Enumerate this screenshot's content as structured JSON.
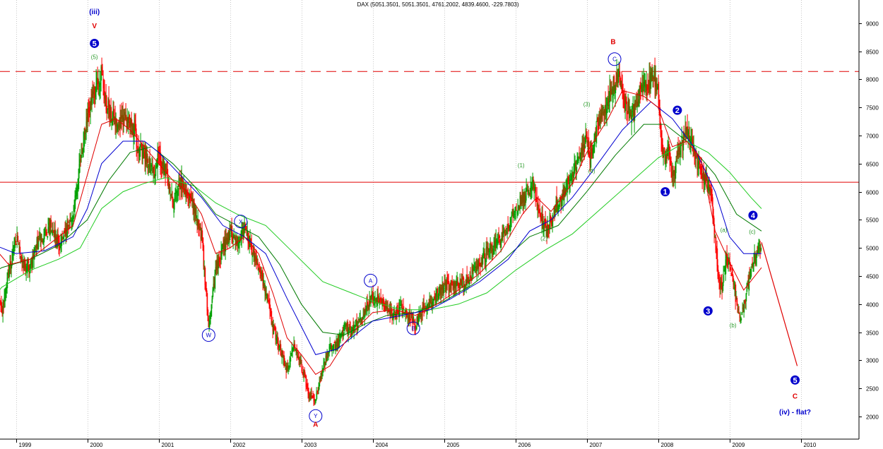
{
  "header": "DAX (5051.3501, 5051.3501, 4761.2002, 4839.4600, -229.7803)",
  "colors": {
    "background": "#ffffff",
    "grid": "#c8c8c8",
    "candle_up": "#00a000",
    "candle_down": "#ff0000",
    "ma_fast": "#e00000",
    "ma_mid": "#0000d0",
    "ma_slow": "#007a00",
    "ma_long": "#22cc22",
    "resistance_line": "#e00000",
    "forecast_line": "#e00000",
    "wave_blue": "#0000cc",
    "wave_red": "#e00000",
    "wave_green": "#2a9a2a"
  },
  "chart_data": {
    "type": "candlestick",
    "title": "DAX",
    "x_axis": {
      "ticks": [
        "1999",
        "2000",
        "2001",
        "2002",
        "2003",
        "2004",
        "2005",
        "2006",
        "2007",
        "2008",
        "2009",
        "2010"
      ],
      "grid": true
    },
    "y_axis": {
      "ticks": [
        2000,
        2500,
        3000,
        3500,
        4000,
        4500,
        5000,
        5500,
        6000,
        6500,
        7000,
        7500,
        8000,
        8500,
        9000
      ],
      "range": [
        1900,
        9300
      ],
      "scale": "linear",
      "position": "right"
    },
    "price_path": [
      [
        1998.5,
        5450
      ],
      [
        1998.55,
        6150
      ],
      [
        1998.6,
        5500
      ],
      [
        1998.7,
        4700
      ],
      [
        1998.8,
        3850
      ],
      [
        1998.9,
        4600
      ],
      [
        1999.0,
        5200
      ],
      [
        1999.1,
        4700
      ],
      [
        1999.2,
        4650
      ],
      [
        1999.3,
        5100
      ],
      [
        1999.4,
        5250
      ],
      [
        1999.5,
        5400
      ],
      [
        1999.6,
        5050
      ],
      [
        1999.7,
        5250
      ],
      [
        1999.8,
        5600
      ],
      [
        1999.9,
        6500
      ],
      [
        2000.0,
        7300
      ],
      [
        2000.1,
        7800
      ],
      [
        2000.2,
        8100
      ],
      [
        2000.25,
        7600
      ],
      [
        2000.35,
        7300
      ],
      [
        2000.45,
        7200
      ],
      [
        2000.55,
        7350
      ],
      [
        2000.65,
        7100
      ],
      [
        2000.75,
        6700
      ],
      [
        2000.85,
        6600
      ],
      [
        2000.95,
        6300
      ],
      [
        2001.0,
        6700
      ],
      [
        2001.1,
        6300
      ],
      [
        2001.2,
        5800
      ],
      [
        2001.3,
        6200
      ],
      [
        2001.4,
        6000
      ],
      [
        2001.5,
        5700
      ],
      [
        2001.6,
        5200
      ],
      [
        2001.7,
        3600
      ],
      [
        2001.8,
        4600
      ],
      [
        2001.9,
        5000
      ],
      [
        2002.0,
        5300
      ],
      [
        2002.1,
        5100
      ],
      [
        2002.2,
        5350
      ],
      [
        2002.3,
        5000
      ],
      [
        2002.4,
        4700
      ],
      [
        2002.5,
        4200
      ],
      [
        2002.6,
        3600
      ],
      [
        2002.7,
        3200
      ],
      [
        2002.8,
        2800
      ],
      [
        2002.9,
        3300
      ],
      [
        2003.0,
        2900
      ],
      [
        2003.1,
        2400
      ],
      [
        2003.2,
        2300
      ],
      [
        2003.3,
        2900
      ],
      [
        2003.4,
        3200
      ],
      [
        2003.5,
        3300
      ],
      [
        2003.6,
        3600
      ],
      [
        2003.7,
        3500
      ],
      [
        2003.8,
        3700
      ],
      [
        2003.9,
        3900
      ],
      [
        2004.0,
        4100
      ],
      [
        2004.1,
        4050
      ],
      [
        2004.2,
        3900
      ],
      [
        2004.3,
        3800
      ],
      [
        2004.4,
        3950
      ],
      [
        2004.5,
        3800
      ],
      [
        2004.6,
        3650
      ],
      [
        2004.7,
        3900
      ],
      [
        2004.8,
        4050
      ],
      [
        2004.9,
        4200
      ],
      [
        2005.0,
        4300
      ],
      [
        2005.1,
        4350
      ],
      [
        2005.2,
        4350
      ],
      [
        2005.3,
        4400
      ],
      [
        2005.4,
        4600
      ],
      [
        2005.5,
        4700
      ],
      [
        2005.6,
        4950
      ],
      [
        2005.7,
        5050
      ],
      [
        2005.8,
        5150
      ],
      [
        2005.9,
        5400
      ],
      [
        2006.0,
        5700
      ],
      [
        2006.1,
        5900
      ],
      [
        2006.2,
        6050
      ],
      [
        2006.25,
        6150
      ],
      [
        2006.35,
        5500
      ],
      [
        2006.45,
        5300
      ],
      [
        2006.55,
        5700
      ],
      [
        2006.65,
        5900
      ],
      [
        2006.75,
        6200
      ],
      [
        2006.85,
        6500
      ],
      [
        2006.95,
        6800
      ],
      [
        2007.0,
        6900
      ],
      [
        2007.05,
        6550
      ],
      [
        2007.15,
        7200
      ],
      [
        2007.25,
        7500
      ],
      [
        2007.35,
        7800
      ],
      [
        2007.45,
        8100
      ],
      [
        2007.55,
        7500
      ],
      [
        2007.65,
        7400
      ],
      [
        2007.75,
        7800
      ],
      [
        2007.85,
        7900
      ],
      [
        2007.95,
        8050
      ],
      [
        2008.0,
        7700
      ],
      [
        2008.05,
        6800
      ],
      [
        2008.1,
        6500
      ],
      [
        2008.15,
        6800
      ],
      [
        2008.2,
        6200
      ],
      [
        2008.3,
        6800
      ],
      [
        2008.4,
        7100
      ],
      [
        2008.45,
        7000
      ],
      [
        2008.55,
        6500
      ],
      [
        2008.6,
        6300
      ],
      [
        2008.7,
        6200
      ],
      [
        2008.75,
        5800
      ],
      [
        2008.8,
        5100
      ],
      [
        2008.85,
        4400
      ],
      [
        2008.9,
        4300
      ],
      [
        2008.95,
        4800
      ],
      [
        2009.0,
        4700
      ],
      [
        2009.05,
        4400
      ],
      [
        2009.1,
        4000
      ],
      [
        2009.15,
        3700
      ],
      [
        2009.25,
        4300
      ],
      [
        2009.35,
        4800
      ],
      [
        2009.4,
        5000
      ],
      [
        2009.45,
        4900
      ]
    ],
    "ma_fast": [
      [
        1998.5,
        5500
      ],
      [
        1998.7,
        5000
      ],
      [
        1998.9,
        4700
      ],
      [
        1999.2,
        4800
      ],
      [
        1999.5,
        5100
      ],
      [
        1999.8,
        5400
      ],
      [
        2000.0,
        6300
      ],
      [
        2000.2,
        7200
      ],
      [
        2000.4,
        7300
      ],
      [
        2000.6,
        7100
      ],
      [
        2000.8,
        6800
      ],
      [
        2001.0,
        6500
      ],
      [
        2001.2,
        6200
      ],
      [
        2001.4,
        6000
      ],
      [
        2001.6,
        5600
      ],
      [
        2001.8,
        4900
      ],
      [
        2002.0,
        5000
      ],
      [
        2002.2,
        5200
      ],
      [
        2002.4,
        4900
      ],
      [
        2002.6,
        4200
      ],
      [
        2002.8,
        3400
      ],
      [
        2003.0,
        3100
      ],
      [
        2003.2,
        2750
      ],
      [
        2003.4,
        2900
      ],
      [
        2003.6,
        3300
      ],
      [
        2003.8,
        3600
      ],
      [
        2004.0,
        3850
      ],
      [
        2004.3,
        3900
      ],
      [
        2004.6,
        3800
      ],
      [
        2004.9,
        4000
      ],
      [
        2005.2,
        4250
      ],
      [
        2005.5,
        4550
      ],
      [
        2005.8,
        4950
      ],
      [
        2006.1,
        5600
      ],
      [
        2006.3,
        5900
      ],
      [
        2006.5,
        5650
      ],
      [
        2006.8,
        6150
      ],
      [
        2007.0,
        6700
      ],
      [
        2007.3,
        7300
      ],
      [
        2007.5,
        7800
      ],
      [
        2007.8,
        7700
      ],
      [
        2008.0,
        7500
      ],
      [
        2008.2,
        6800
      ],
      [
        2008.4,
        6900
      ],
      [
        2008.6,
        6600
      ],
      [
        2008.8,
        5300
      ],
      [
        2009.0,
        4750
      ],
      [
        2009.2,
        4250
      ],
      [
        2009.45,
        4650
      ]
    ],
    "ma_mid": [
      [
        1998.5,
        4700
      ],
      [
        1998.6,
        5100
      ],
      [
        1998.8,
        5000
      ],
      [
        1999.0,
        4900
      ],
      [
        1999.4,
        4950
      ],
      [
        1999.8,
        5200
      ],
      [
        2000.0,
        5700
      ],
      [
        2000.2,
        6500
      ],
      [
        2000.5,
        6900
      ],
      [
        2000.8,
        6900
      ],
      [
        2001.0,
        6700
      ],
      [
        2001.3,
        6300
      ],
      [
        2001.6,
        5900
      ],
      [
        2001.9,
        5400
      ],
      [
        2002.2,
        5200
      ],
      [
        2002.5,
        4900
      ],
      [
        2002.8,
        4100
      ],
      [
        2003.0,
        3600
      ],
      [
        2003.2,
        3100
      ],
      [
        2003.5,
        3200
      ],
      [
        2003.8,
        3500
      ],
      [
        2004.0,
        3700
      ],
      [
        2004.4,
        3800
      ],
      [
        2004.8,
        3900
      ],
      [
        2005.1,
        4100
      ],
      [
        2005.5,
        4400
      ],
      [
        2005.9,
        4800
      ],
      [
        2006.2,
        5300
      ],
      [
        2006.5,
        5500
      ],
      [
        2006.8,
        5900
      ],
      [
        2007.1,
        6400
      ],
      [
        2007.5,
        7100
      ],
      [
        2007.9,
        7600
      ],
      [
        2008.2,
        7300
      ],
      [
        2008.5,
        6800
      ],
      [
        2008.8,
        6000
      ],
      [
        2009.0,
        5200
      ],
      [
        2009.2,
        4900
      ],
      [
        2009.45,
        4900
      ]
    ],
    "ma_slow": [
      [
        1998.5,
        4400
      ],
      [
        1998.8,
        4650
      ],
      [
        1999.2,
        4800
      ],
      [
        1999.6,
        5050
      ],
      [
        2000.0,
        5500
      ],
      [
        2000.3,
        6200
      ],
      [
        2000.6,
        6700
      ],
      [
        2000.9,
        6800
      ],
      [
        2001.2,
        6500
      ],
      [
        2001.5,
        6100
      ],
      [
        2001.8,
        5600
      ],
      [
        2002.1,
        5400
      ],
      [
        2002.4,
        5200
      ],
      [
        2002.7,
        4700
      ],
      [
        2003.0,
        4000
      ],
      [
        2003.3,
        3500
      ],
      [
        2003.6,
        3450
      ],
      [
        2003.9,
        3650
      ],
      [
        2004.2,
        3800
      ],
      [
        2004.6,
        3850
      ],
      [
        2005.0,
        4050
      ],
      [
        2005.4,
        4350
      ],
      [
        2005.8,
        4750
      ],
      [
        2006.2,
        5200
      ],
      [
        2006.6,
        5400
      ],
      [
        2007.0,
        6000
      ],
      [
        2007.4,
        6650
      ],
      [
        2007.8,
        7200
      ],
      [
        2008.1,
        7200
      ],
      [
        2008.4,
        6900
      ],
      [
        2008.8,
        6300
      ],
      [
        2009.1,
        5600
      ],
      [
        2009.45,
        5300
      ]
    ],
    "ma_long": [
      [
        1998.5,
        3800
      ],
      [
        1998.8,
        4300
      ],
      [
        1999.2,
        4600
      ],
      [
        1999.6,
        4800
      ],
      [
        1999.9,
        5000
      ],
      [
        2000.2,
        5700
      ],
      [
        2000.5,
        6000
      ],
      [
        2000.8,
        6150
      ],
      [
        2001.1,
        6250
      ],
      [
        2001.5,
        6100
      ],
      [
        2001.8,
        5800
      ],
      [
        2002.1,
        5600
      ],
      [
        2002.5,
        5400
      ],
      [
        2002.9,
        4900
      ],
      [
        2003.3,
        4400
      ],
      [
        2003.7,
        4200
      ],
      [
        2004.0,
        4050
      ],
      [
        2004.4,
        3900
      ],
      [
        2004.8,
        3900
      ],
      [
        2005.2,
        4000
      ],
      [
        2005.6,
        4200
      ],
      [
        2006.0,
        4600
      ],
      [
        2006.4,
        4950
      ],
      [
        2006.8,
        5250
      ],
      [
        2007.2,
        5700
      ],
      [
        2007.6,
        6150
      ],
      [
        2008.0,
        6600
      ],
      [
        2008.4,
        6900
      ],
      [
        2008.7,
        6700
      ],
      [
        2009.0,
        6350
      ],
      [
        2009.3,
        5900
      ],
      [
        2009.45,
        5700
      ]
    ],
    "horizontal_lines": [
      {
        "value": 8140,
        "style": "dashed"
      },
      {
        "value": 6170,
        "style": "solid"
      }
    ],
    "forecast_line": [
      [
        2009.45,
        5100
      ],
      [
        2009.95,
        2900
      ]
    ],
    "wave_labels": [
      {
        "text": "(iii)",
        "x": 2000.1,
        "y": 9210,
        "color": "blue",
        "style": "plain"
      },
      {
        "text": "V",
        "x": 2000.1,
        "y": 8960,
        "color": "red",
        "style": "plain"
      },
      {
        "text": "5",
        "x": 2000.1,
        "y": 8640,
        "color": "blue",
        "style": "filled"
      },
      {
        "text": "(5)",
        "x": 2000.1,
        "y": 8400,
        "color": "green",
        "style": "small"
      },
      {
        "text": "W",
        "x": 2001.7,
        "y": 3450,
        "color": "blue",
        "style": "circle"
      },
      {
        "text": "X",
        "x": 2002.15,
        "y": 5470,
        "color": "blue",
        "style": "circle"
      },
      {
        "text": "Y",
        "x": 2003.2,
        "y": 2010,
        "color": "blue",
        "style": "circle"
      },
      {
        "text": "A",
        "x": 2003.2,
        "y": 1870,
        "color": "red",
        "style": "plain"
      },
      {
        "text": "A",
        "x": 2003.97,
        "y": 4420,
        "color": "blue",
        "style": "circle"
      },
      {
        "text": "B",
        "x": 2004.57,
        "y": 3570,
        "color": "blue",
        "style": "circle"
      },
      {
        "text": "(1)",
        "x": 2006.08,
        "y": 6470,
        "color": "green",
        "style": "small"
      },
      {
        "text": "(2)",
        "x": 2006.4,
        "y": 5170,
        "color": "green",
        "style": "small"
      },
      {
        "text": "(3)",
        "x": 2007.0,
        "y": 7560,
        "color": "green",
        "style": "small"
      },
      {
        "text": "(4)",
        "x": 2007.07,
        "y": 6370,
        "color": "green",
        "style": "small"
      },
      {
        "text": "B",
        "x": 2007.37,
        "y": 8680,
        "color": "red",
        "style": "plain"
      },
      {
        "text": "C",
        "x": 2007.39,
        "y": 8360,
        "color": "blue",
        "style": "circle"
      },
      {
        "text": "1",
        "x": 2008.1,
        "y": 6000,
        "color": "blue",
        "style": "filled"
      },
      {
        "text": "2",
        "x": 2008.27,
        "y": 7450,
        "color": "blue",
        "style": "filled"
      },
      {
        "text": "3",
        "x": 2008.7,
        "y": 3880,
        "color": "blue",
        "style": "filled"
      },
      {
        "text": "4",
        "x": 2009.33,
        "y": 5580,
        "color": "blue",
        "style": "filled"
      },
      {
        "text": "(a)",
        "x": 2008.92,
        "y": 5320,
        "color": "green",
        "style": "small"
      },
      {
        "text": "(b)",
        "x": 2009.05,
        "y": 3630,
        "color": "green",
        "style": "small"
      },
      {
        "text": "(c)",
        "x": 2009.32,
        "y": 5290,
        "color": "green",
        "style": "small"
      },
      {
        "text": "5",
        "x": 2009.92,
        "y": 2650,
        "color": "blue",
        "style": "filled"
      },
      {
        "text": "C",
        "x": 2009.92,
        "y": 2370,
        "color": "red",
        "style": "plain"
      },
      {
        "text": "(iv) - flat?",
        "x": 2009.92,
        "y": 2090,
        "color": "blue",
        "style": "plain"
      }
    ]
  }
}
